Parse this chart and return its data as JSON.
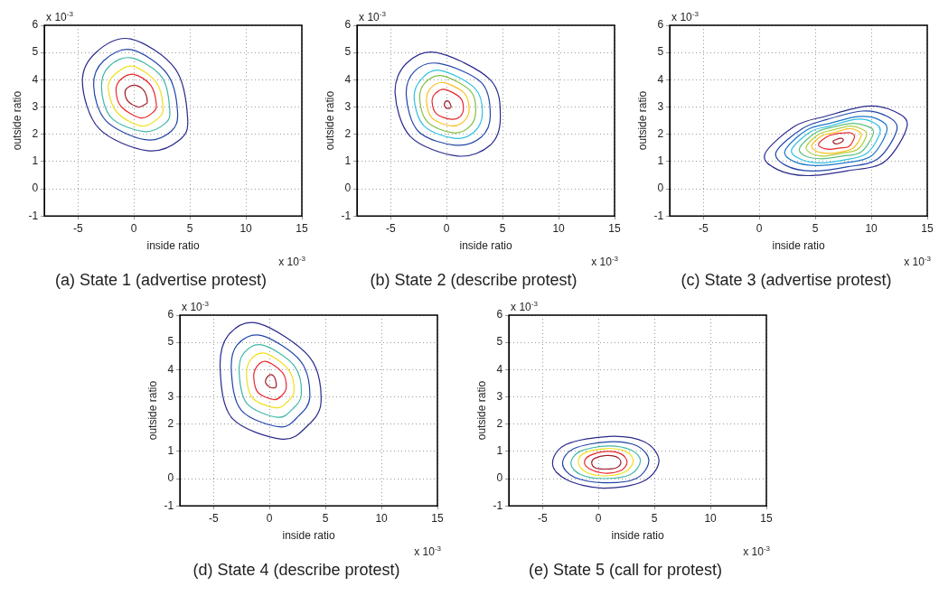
{
  "chart_data": [
    {
      "type": "line",
      "title": "(a) State 1 (advertise protest)",
      "xlabel": "inside ratio",
      "ylabel": "outside ratio",
      "annotations": [
        "x 10$^{-3}$",
        "x 10$^{-3}$"
      ],
      "xlim": [
        -8,
        15
      ],
      "xticks": [
        -5,
        0,
        5,
        10,
        15
      ],
      "ylim": [
        -1,
        6
      ],
      "yticks": [
        -1,
        0,
        1,
        2,
        3,
        4,
        5,
        6
      ],
      "grid": true
    },
    {
      "type": "line",
      "title": "(b) State 2 (describe protest)",
      "xlabel": "inside ratio",
      "ylabel": "outside ratio",
      "annotations": [
        "x 10$^{-3}$",
        "x 10$^{-3}$"
      ],
      "xlim": [
        -8,
        15
      ],
      "xticks": [
        -5,
        0,
        5,
        10,
        15
      ],
      "ylim": [
        -1,
        6
      ],
      "yticks": [
        -1,
        0,
        1,
        2,
        3,
        4,
        5,
        6
      ],
      "grid": true
    },
    {
      "type": "line",
      "title": "(c) State 3 (advertise protest)",
      "xlabel": "inside ratio",
      "ylabel": "outside ratio",
      "annotations": [
        "x 10$^{-3}$",
        "x 10$^{-3}$"
      ],
      "xlim": [
        -8,
        15
      ],
      "xticks": [
        -5,
        0,
        5,
        10,
        15
      ],
      "ylim": [
        -1,
        6
      ],
      "yticks": [
        -1,
        0,
        1,
        2,
        3,
        4,
        5,
        6
      ],
      "grid": true
    },
    {
      "type": "line",
      "title": "(d) State 4 (describe protest)",
      "xlabel": "inside ratio",
      "ylabel": "outside ratio",
      "annotations": [
        "x 10$^{-3}$",
        "x 10$^{-3}$"
      ],
      "xlim": [
        -8,
        15
      ],
      "xticks": [
        -5,
        0,
        5,
        10,
        15
      ],
      "ylim": [
        -1,
        6
      ],
      "yticks": [
        -1,
        0,
        1,
        2,
        3,
        4,
        5,
        6
      ],
      "grid": true
    },
    {
      "type": "line",
      "title": "(e) State 5 (call for protest)",
      "xlabel": "inside ratio",
      "ylabel": "outside ratio",
      "annotations": [
        "x 10$^{-3}$",
        "x 10$^{-3}$"
      ],
      "xlim": [
        -8,
        15
      ],
      "xticks": [
        -5,
        0,
        5,
        10,
        15
      ],
      "ylim": [
        -1,
        6
      ],
      "yticks": [
        -1,
        0,
        1,
        2,
        3,
        4,
        5,
        6
      ],
      "grid": true
    }
  ]
}
